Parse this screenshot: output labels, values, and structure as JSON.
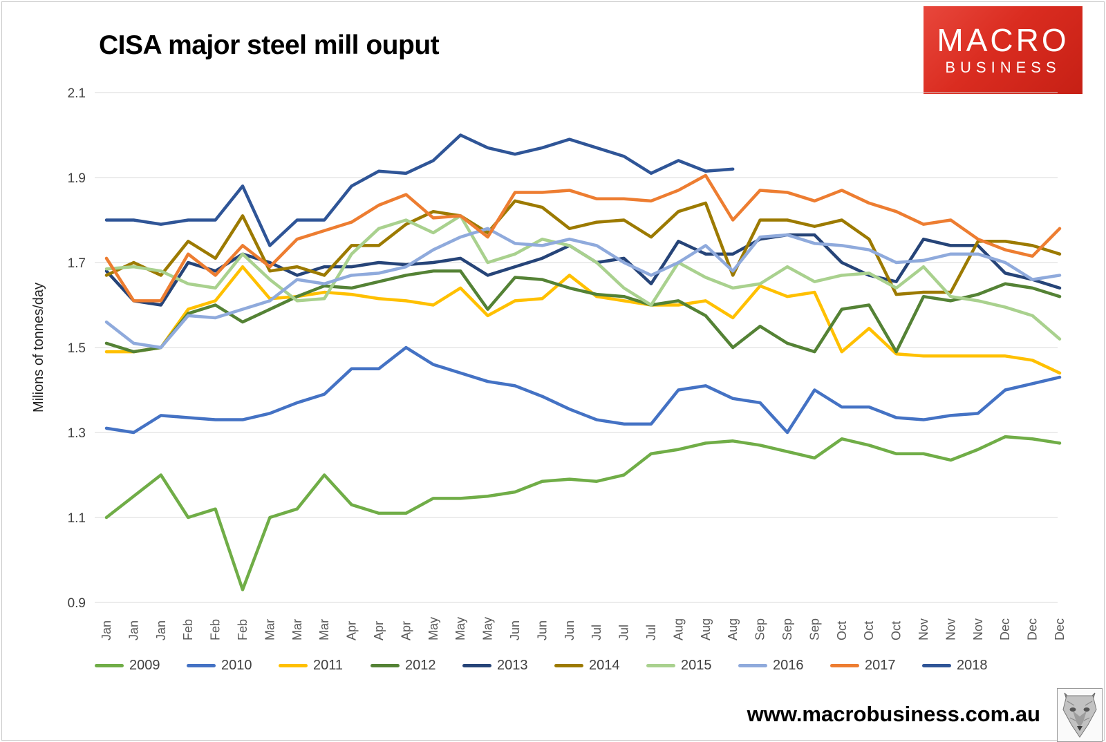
{
  "page": {
    "website": "www.macrobusiness.com.au"
  },
  "logo": {
    "line1": "MACRO",
    "line2": "BUSINESS",
    "bg_color": "#d7281d",
    "text_color": "#ffffff"
  },
  "chart_data": {
    "type": "line",
    "title": "CISA major steel mill ouput",
    "ylabel": "Milions of tonnes/day",
    "xlabel": "",
    "ylim": [
      0.9,
      2.1
    ],
    "yticks": [
      0.9,
      1.1,
      1.3,
      1.5,
      1.7,
      1.9,
      2.1
    ],
    "grid": "horizontal",
    "legend_position": "bottom",
    "x_labels": [
      "Jan",
      "Jan",
      "Jan",
      "Feb",
      "Feb",
      "Feb",
      "Mar",
      "Mar",
      "Mar",
      "Apr",
      "Apr",
      "Apr",
      "May",
      "May",
      "May",
      "Jun",
      "Jun",
      "Jun",
      "Jul",
      "Jul",
      "Jul",
      "Aug",
      "Aug",
      "Aug",
      "Sep",
      "Sep",
      "Sep",
      "Oct",
      "Oct",
      "Oct",
      "Nov",
      "Nov",
      "Nov",
      "Dec",
      "Dec",
      "Dec"
    ],
    "series": [
      {
        "name": "2009",
        "color": "#70AD47",
        "values": [
          1.1,
          1.15,
          1.2,
          1.1,
          1.12,
          0.93,
          1.1,
          1.12,
          1.2,
          1.13,
          1.11,
          1.11,
          1.145,
          1.145,
          1.15,
          1.16,
          1.185,
          1.19,
          1.185,
          1.2,
          1.25,
          1.26,
          1.275,
          1.28,
          1.27,
          1.255,
          1.24,
          1.285,
          1.27,
          1.25,
          1.25,
          1.235,
          1.26,
          1.29,
          1.285,
          1.275
        ]
      },
      {
        "name": "2010",
        "color": "#4472C4",
        "values": [
          1.31,
          1.3,
          1.34,
          1.335,
          1.33,
          1.33,
          1.345,
          1.37,
          1.39,
          1.45,
          1.45,
          1.5,
          1.46,
          1.44,
          1.42,
          1.41,
          1.385,
          1.355,
          1.33,
          1.32,
          1.32,
          1.4,
          1.41,
          1.38,
          1.37,
          1.3,
          1.4,
          1.36,
          1.36,
          1.335,
          1.33,
          1.34,
          1.345,
          1.4,
          1.415,
          1.43
        ]
      },
      {
        "name": "2011",
        "color": "#FFC000",
        "values": [
          1.49,
          1.49,
          1.5,
          1.59,
          1.61,
          1.69,
          1.615,
          1.62,
          1.63,
          1.625,
          1.615,
          1.61,
          1.6,
          1.64,
          1.575,
          1.61,
          1.615,
          1.67,
          1.62,
          1.61,
          1.6,
          1.6,
          1.61,
          1.57,
          1.645,
          1.62,
          1.63,
          1.49,
          1.545,
          1.485,
          1.48,
          1.48,
          1.48,
          1.48,
          1.47,
          1.44
        ]
      },
      {
        "name": "2012",
        "color": "#548235",
        "values": [
          1.51,
          1.49,
          1.5,
          1.58,
          1.6,
          1.56,
          1.59,
          1.62,
          1.645,
          1.64,
          1.655,
          1.67,
          1.68,
          1.68,
          1.59,
          1.665,
          1.66,
          1.64,
          1.625,
          1.62,
          1.6,
          1.61,
          1.575,
          1.5,
          1.55,
          1.51,
          1.49,
          1.59,
          1.6,
          1.49,
          1.62,
          1.61,
          1.625,
          1.65,
          1.64,
          1.62
        ]
      },
      {
        "name": "2013",
        "color": "#264478",
        "values": [
          1.68,
          1.61,
          1.6,
          1.7,
          1.68,
          1.72,
          1.7,
          1.67,
          1.69,
          1.69,
          1.7,
          1.695,
          1.7,
          1.71,
          1.67,
          1.69,
          1.71,
          1.74,
          1.7,
          1.71,
          1.65,
          1.75,
          1.72,
          1.72,
          1.755,
          1.765,
          1.765,
          1.7,
          1.67,
          1.655,
          1.755,
          1.74,
          1.74,
          1.675,
          1.66,
          1.64
        ]
      },
      {
        "name": "2014",
        "color": "#9C7A00",
        "values": [
          1.67,
          1.7,
          1.67,
          1.75,
          1.71,
          1.81,
          1.68,
          1.69,
          1.67,
          1.74,
          1.74,
          1.79,
          1.82,
          1.81,
          1.77,
          1.845,
          1.83,
          1.78,
          1.795,
          1.8,
          1.76,
          1.82,
          1.84,
          1.67,
          1.8,
          1.8,
          1.785,
          1.8,
          1.755,
          1.625,
          1.63,
          1.63,
          1.75,
          1.75,
          1.74,
          1.72
        ]
      },
      {
        "name": "2015",
        "color": "#A9D18E",
        "values": [
          1.685,
          1.69,
          1.68,
          1.65,
          1.64,
          1.72,
          1.66,
          1.61,
          1.615,
          1.72,
          1.78,
          1.8,
          1.77,
          1.81,
          1.7,
          1.72,
          1.755,
          1.74,
          1.7,
          1.64,
          1.6,
          1.7,
          1.665,
          1.64,
          1.65,
          1.69,
          1.655,
          1.67,
          1.675,
          1.64,
          1.69,
          1.62,
          1.61,
          1.595,
          1.575,
          1.52
        ]
      },
      {
        "name": "2016",
        "color": "#8FAADC",
        "values": [
          1.56,
          1.51,
          1.5,
          1.575,
          1.57,
          1.59,
          1.61,
          1.66,
          1.65,
          1.67,
          1.675,
          1.69,
          1.73,
          1.76,
          1.78,
          1.745,
          1.74,
          1.755,
          1.74,
          1.7,
          1.67,
          1.7,
          1.74,
          1.68,
          1.76,
          1.765,
          1.745,
          1.74,
          1.73,
          1.7,
          1.705,
          1.72,
          1.72,
          1.7,
          1.66,
          1.67
        ]
      },
      {
        "name": "2017",
        "color": "#ED7D31",
        "values": [
          1.71,
          1.61,
          1.61,
          1.72,
          1.67,
          1.74,
          1.69,
          1.755,
          1.775,
          1.795,
          1.835,
          1.86,
          1.805,
          1.81,
          1.76,
          1.865,
          1.865,
          1.87,
          1.85,
          1.85,
          1.845,
          1.87,
          1.905,
          1.8,
          1.87,
          1.865,
          1.845,
          1.87,
          1.84,
          1.82,
          1.79,
          1.8,
          1.755,
          1.73,
          1.715,
          1.78
        ]
      },
      {
        "name": "2018",
        "color": "#2F5597",
        "values": [
          1.8,
          1.8,
          1.79,
          1.8,
          1.8,
          1.88,
          1.74,
          1.8,
          1.8,
          1.88,
          1.915,
          1.91,
          1.94,
          2.0,
          1.97,
          1.955,
          1.97,
          1.99,
          1.97,
          1.95,
          1.91,
          1.94,
          1.915,
          1.92
        ]
      }
    ]
  }
}
